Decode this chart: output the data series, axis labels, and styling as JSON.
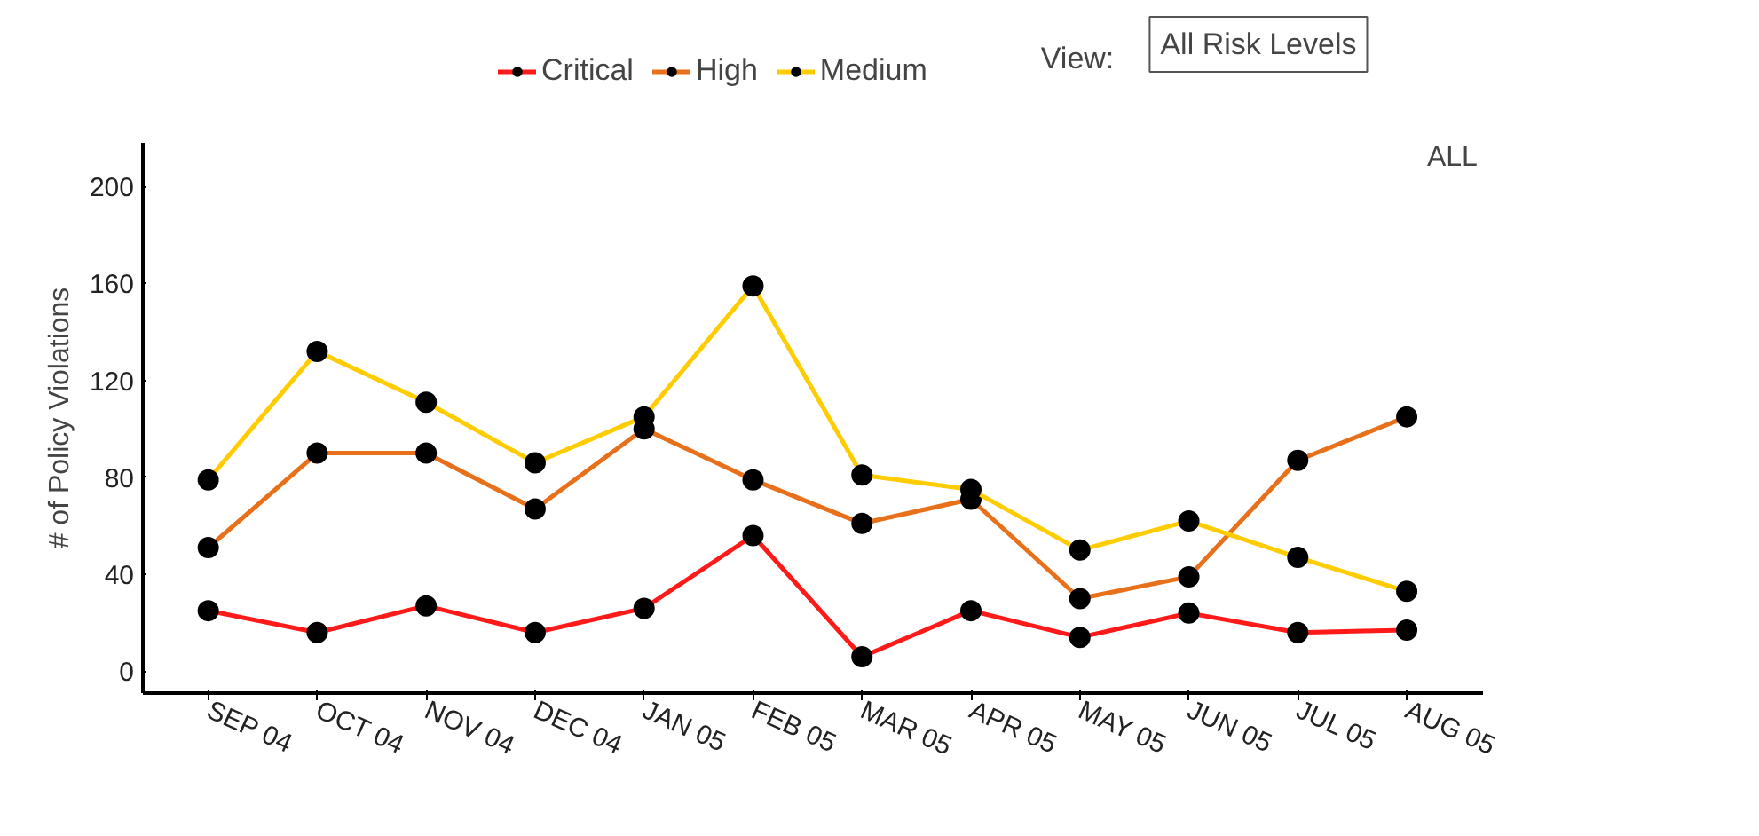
{
  "chart_data": {
    "type": "line",
    "categories": [
      "SEP 04",
      "OCT 04",
      "NOV 04",
      "DEC 04",
      "JAN 05",
      "FEB 05",
      "MAR 05",
      "APR 05",
      "MAY 05",
      "JUN 05",
      "JUL 05",
      "AUG 05"
    ],
    "series": [
      {
        "name": "Critical",
        "color": "#ff1a1a",
        "values": [
          25,
          16,
          27,
          16,
          26,
          56,
          6,
          25,
          14,
          24,
          16,
          17
        ]
      },
      {
        "name": "High",
        "color": "#e8701a",
        "values": [
          51,
          90,
          90,
          67,
          100,
          79,
          61,
          71,
          30,
          39,
          87,
          105
        ]
      },
      {
        "name": "Medium",
        "color": "#ffcc00",
        "values": [
          79,
          132,
          111,
          86,
          105,
          159,
          81,
          75,
          50,
          62,
          47,
          33
        ]
      }
    ],
    "ylabel": "# of Policy Violations",
    "ylim": [
      -9,
      218
    ],
    "yticks": [
      0,
      40,
      80,
      120,
      160,
      200
    ],
    "marker": "circle",
    "line_style": "solid",
    "grid": false,
    "legend": "top",
    "annotations": [
      "ALL",
      "View:",
      "All Risk Levels"
    ]
  }
}
